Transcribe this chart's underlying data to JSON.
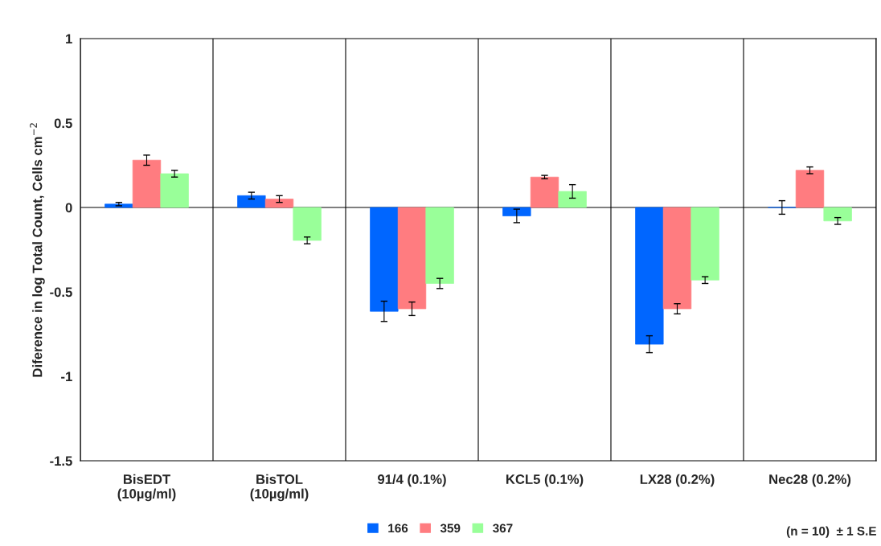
{
  "chart_data": {
    "type": "bar",
    "categories": [
      "BisEDT\n(10µg/ml)",
      "BisTOL\n(10µg/ml)",
      "91/4 (0.1%)",
      "KCL5 (0.1%)",
      "LX28 (0.2%)",
      "Nec28 (0.2%)"
    ],
    "series": [
      {
        "name": "166",
        "color": "#0066ff",
        "values": [
          0.02,
          0.07,
          -0.615,
          -0.05,
          -0.81,
          0.0
        ],
        "errors": [
          0.01,
          0.02,
          0.06,
          0.04,
          0.05,
          0.04
        ]
      },
      {
        "name": "359",
        "color": "#ff7c80",
        "values": [
          0.28,
          0.05,
          -0.6,
          0.18,
          -0.6,
          0.22
        ],
        "errors": [
          0.03,
          0.02,
          0.04,
          0.01,
          0.03,
          0.02
        ]
      },
      {
        "name": "367",
        "color": "#99ff99",
        "values": [
          0.2,
          -0.195,
          -0.45,
          0.095,
          -0.43,
          -0.08
        ],
        "errors": [
          0.02,
          0.02,
          0.03,
          0.04,
          0.02,
          0.02
        ]
      }
    ],
    "ylabel": "Diference in log Total Count, Cells cm$^{−2}$",
    "ylim": [
      -1.5,
      1
    ],
    "yticks": [
      -1.5,
      -1,
      -0.5,
      0,
      0.5,
      1
    ],
    "ref_lines": [
      {
        "axis": "y",
        "value": 0,
        "color": "#000000"
      }
    ],
    "grid": "x",
    "legend": "bottom",
    "annotations": [
      "(n = 10)  ± 1 S.E"
    ]
  }
}
